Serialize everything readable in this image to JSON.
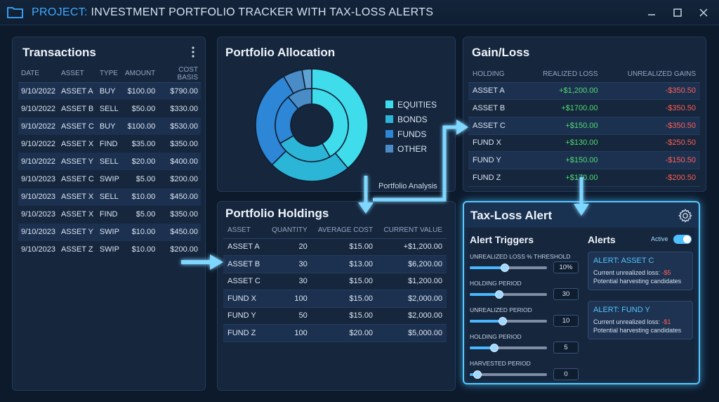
{
  "window": {
    "title_accent": "PROJECT:",
    "title_rest": " INVESTMENT PORTFOLIO TRACKER WITH TAX-LOSS ALERTS",
    "icons": {
      "folder": "folder-icon",
      "minimize": "minimize-icon",
      "maximize": "maximize-icon",
      "close": "close-icon"
    }
  },
  "transactions": {
    "title": "Transactions",
    "menu_icon": "kebab-menu-icon",
    "columns": [
      "DATE",
      "ASSET",
      "TYPE",
      "AMOUNT",
      "COST BASIS"
    ],
    "rows": [
      [
        "9/10/2022",
        "ASSET A",
        "BUY",
        "$100.00",
        "$790.00"
      ],
      [
        "9/10/2022",
        "ASSET B",
        "SELL",
        "$50.00",
        "$330.00"
      ],
      [
        "9/10/2022",
        "ASSET C",
        "BUY",
        "$100.00",
        "$530.00"
      ],
      [
        "9/10/2022",
        "ASSET X",
        "FIND",
        "$35.00",
        "$350.00"
      ],
      [
        "9/10/2022",
        "ASSET Y",
        "SELL",
        "$20.00",
        "$400.00"
      ],
      [
        "9/10/2023",
        "ASSET C",
        "SWIP",
        "$5.00",
        "$200.00"
      ],
      [
        "9/10/2023",
        "ASSET X",
        "SELL",
        "$10.00",
        "$450.00"
      ],
      [
        "9/10/2023",
        "ASSET X",
        "FIND",
        "$5.00",
        "$350.00"
      ],
      [
        "9/10/2023",
        "ASSET Y",
        "SWIP",
        "$10.00",
        "$450.00"
      ],
      [
        "9/10/2023",
        "ASSET Z",
        "SWIP",
        "$10.00",
        "$200.00"
      ]
    ]
  },
  "allocation": {
    "title": "Portfolio Allocation",
    "legend": [
      {
        "label": "EQUITIES",
        "color": "#3fdcec"
      },
      {
        "label": "BONDS",
        "color": "#2bb6d8"
      },
      {
        "label": "FUNDS",
        "color": "#2d86d6"
      },
      {
        "label": "OTHER",
        "color": "#4a8cc7"
      }
    ]
  },
  "flow": {
    "label": "Portfolio Analysis"
  },
  "holdings": {
    "title": "Portfolio Holdings",
    "columns": [
      "ASSET",
      "QUANTITY",
      "AVERAGE COST",
      "CURRENT VALUE"
    ],
    "rows": [
      [
        "ASSET A",
        "20",
        "$15.00",
        "+$1,200.00"
      ],
      [
        "ASSET B",
        "30",
        "$13.00",
        "$6,200.00"
      ],
      [
        "ASSET C",
        "30",
        "$15.00",
        "$1,200.00"
      ],
      [
        "FUND X",
        "100",
        "$15.00",
        "$2,000.00"
      ],
      [
        "FUND Y",
        "50",
        "$15.00",
        "$2,000.00"
      ],
      [
        "FUND Z",
        "100",
        "$20.00",
        "$5,000.00"
      ]
    ]
  },
  "gainloss": {
    "title": "Gain/Loss",
    "columns": [
      "HOLDING",
      "REALIZED LOSS",
      "UNREALIZED GAINS"
    ],
    "rows": [
      [
        "ASSET A",
        "+$1,200.00",
        "-$350.50"
      ],
      [
        "ASSET B",
        "+$1700.00",
        "-$350.50"
      ],
      [
        "ASSET C",
        "+$150.00",
        "-$350.50"
      ],
      [
        "FUND X",
        "+$130.00",
        "-$250.50"
      ],
      [
        "FUND Y",
        "+$150.00",
        "-$150.50"
      ],
      [
        "FUND Z",
        "+$170.00",
        "-$200.50"
      ]
    ],
    "positive_color": "#4fdc6e",
    "negative_color": "#ff5f55"
  },
  "taxloss": {
    "title": "Tax-Loss Alert",
    "settings_icon": "gear-icon",
    "triggers_heading": "Alert Triggers",
    "alerts_heading": "Alerts",
    "active_label": "Active",
    "active_on": true,
    "triggers": [
      {
        "label": "UNREALIZED LOSS % THRESHOLD",
        "value": "10%",
        "level": 0.45
      },
      {
        "label": "HOLDING PERIOD",
        "value": "30",
        "level": 0.38
      },
      {
        "label": "UNREALIZED PERIOD",
        "value": "10",
        "level": 0.43
      },
      {
        "label": "HOLDING PERIOD",
        "value": "5",
        "level": 0.32
      },
      {
        "label": "HARVESTED PERIOD",
        "value": "0",
        "level": 0.1
      }
    ],
    "alerts": [
      {
        "title": "ALERT: ASSET C",
        "loss_prefix": "Current unrealized loss: ",
        "loss_value": "-$5",
        "note": "Potential harvesting candidates"
      },
      {
        "title": "ALERT: FUND Y",
        "loss_prefix": "Current unrealized loss: ",
        "loss_value": "-$1",
        "note": "Potential harvesting candidates"
      }
    ]
  }
}
